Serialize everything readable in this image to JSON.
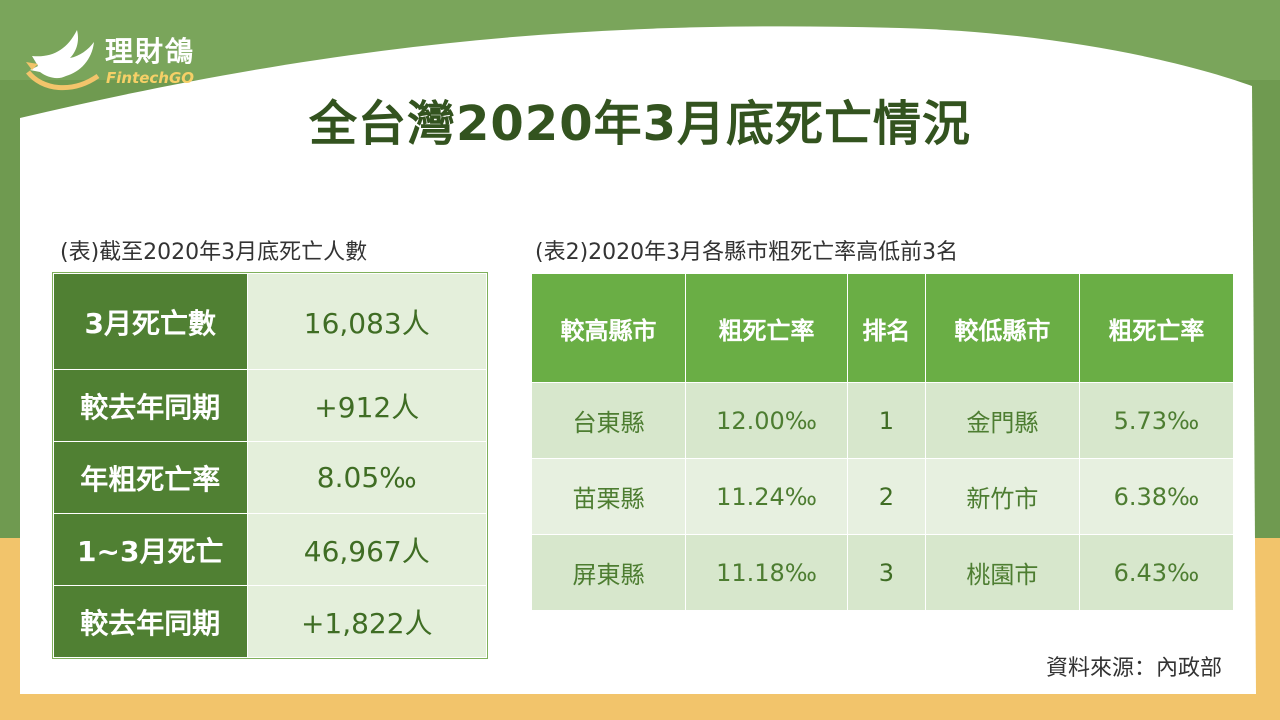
{
  "logo": {
    "name_cn": "理財鴿",
    "name_en": "FintechGO"
  },
  "title": "全台灣2020年3月底死亡情況",
  "table1": {
    "caption": "(表)截至2020年3月底死亡人數",
    "rows": [
      {
        "label": "3月死亡數",
        "value": "16,083人"
      },
      {
        "label": "較去年同期",
        "value": "+912人"
      },
      {
        "label": "年粗死亡率",
        "value": "8.05‰"
      },
      {
        "label": "1~3月死亡",
        "value": "46,967人"
      },
      {
        "label": "較去年同期",
        "value": "+1,822人"
      }
    ]
  },
  "table2": {
    "caption": "(表2)2020年3月各縣市粗死亡率高低前3名",
    "headers": [
      "較高縣市",
      "粗死亡率",
      "排名",
      "較低縣市",
      "粗死亡率"
    ],
    "rows": [
      {
        "high_county": "台東縣",
        "high_rate": "12.00‰",
        "rank": "1",
        "low_county": "金門縣",
        "low_rate": "5.73‰"
      },
      {
        "high_county": "苗栗縣",
        "high_rate": "11.24‰",
        "rank": "2",
        "low_county": "新竹市",
        "low_rate": "6.38‰"
      },
      {
        "high_county": "屏東縣",
        "high_rate": "11.18‰",
        "rank": "3",
        "low_county": "桃園市",
        "low_rate": "6.43‰"
      }
    ]
  },
  "source": "資料來源：內政部",
  "colors": {
    "dark_green": "#508033",
    "header_green": "#6aae45",
    "title_green": "#33531f",
    "yellow": "#f2c46b"
  }
}
